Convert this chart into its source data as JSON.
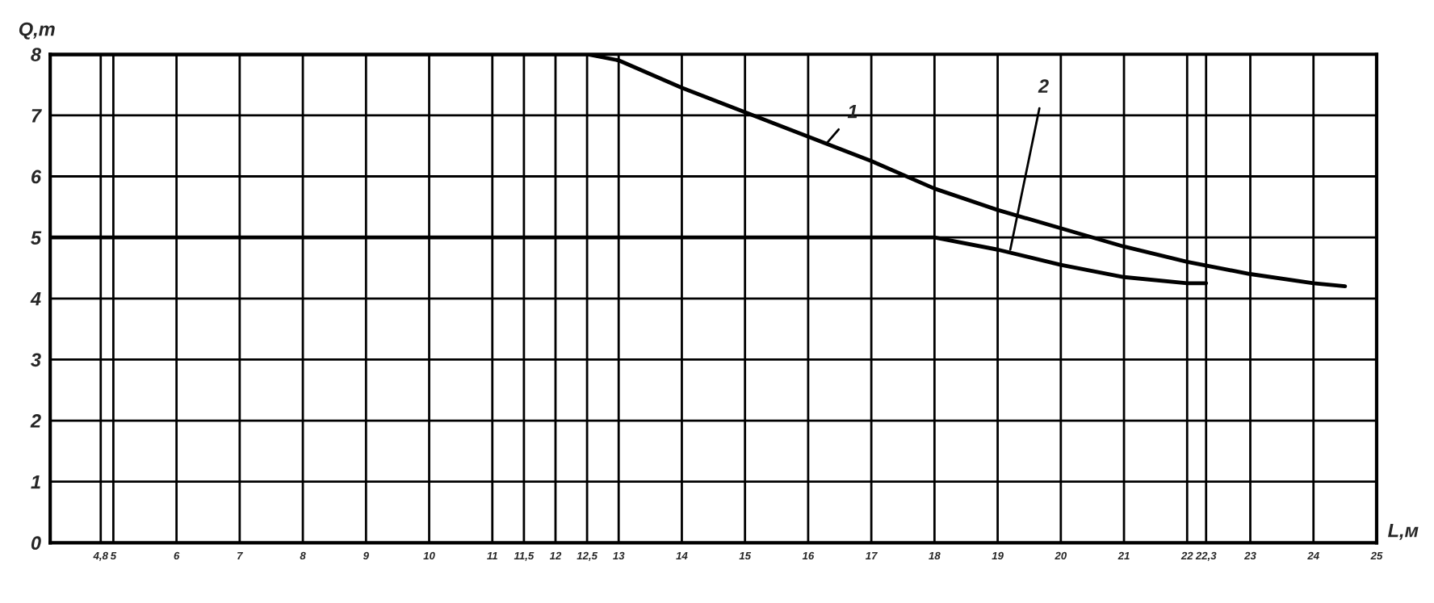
{
  "chart_data": {
    "type": "line",
    "xlabel": "L,м",
    "ylabel": "Q,т",
    "xlim": [
      4,
      25
    ],
    "ylim": [
      0,
      8
    ],
    "xticks": [
      {
        "value": 4.8,
        "label": "4,8"
      },
      5,
      6,
      7,
      8,
      9,
      10,
      11,
      {
        "value": 11.5,
        "label": "11,5"
      },
      12,
      {
        "value": 12.5,
        "label": "12,5"
      },
      13,
      14,
      15,
      16,
      17,
      18,
      19,
      20,
      21,
      22,
      {
        "value": 22.3,
        "label": "22,3"
      },
      23,
      24,
      25
    ],
    "yticks": [
      0,
      1,
      2,
      3,
      4,
      5,
      6,
      7,
      8
    ],
    "grid": true,
    "marker": "none",
    "line_style": "solid",
    "legend": false,
    "series": [
      {
        "color": "#000000",
        "x": [
          4,
          12.5,
          13,
          14,
          15,
          16,
          17,
          18,
          19,
          20,
          21,
          22,
          23,
          24,
          24.5
        ],
        "values": [
          8,
          8,
          7.9,
          7.45,
          7.05,
          6.65,
          6.25,
          5.8,
          5.45,
          5.15,
          4.85,
          4.6,
          4.4,
          4.25,
          4.2
        ]
      },
      {
        "color": "#000000",
        "x": [
          4,
          18,
          19,
          20,
          21,
          22,
          22.3
        ],
        "values": [
          5,
          5,
          4.8,
          4.55,
          4.35,
          4.25,
          4.25
        ]
      }
    ],
    "annotations": [
      {
        "text": "1",
        "x": 16.3,
        "y": 6.55
      },
      {
        "text": "2",
        "x": 19.2,
        "y": 4.8
      }
    ]
  }
}
